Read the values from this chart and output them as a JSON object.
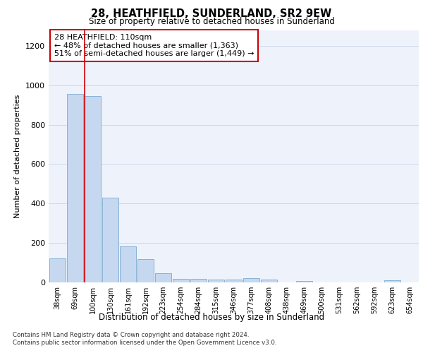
{
  "title": "28, HEATHFIELD, SUNDERLAND, SR2 9EW",
  "subtitle": "Size of property relative to detached houses in Sunderland",
  "xlabel": "Distribution of detached houses by size in Sunderland",
  "ylabel": "Number of detached properties",
  "categories": [
    "38sqm",
    "69sqm",
    "100sqm",
    "130sqm",
    "161sqm",
    "192sqm",
    "223sqm",
    "254sqm",
    "284sqm",
    "315sqm",
    "346sqm",
    "377sqm",
    "408sqm",
    "438sqm",
    "469sqm",
    "500sqm",
    "531sqm",
    "562sqm",
    "592sqm",
    "623sqm",
    "654sqm"
  ],
  "values": [
    120,
    955,
    945,
    430,
    183,
    117,
    47,
    18,
    18,
    13,
    13,
    20,
    13,
    0,
    8,
    0,
    0,
    0,
    0,
    10,
    0
  ],
  "bar_color": "#c5d8f0",
  "bar_edge_color": "#7aaad0",
  "background_color": "#eef2fb",
  "annotation_text": "28 HEATHFIELD: 110sqm\n← 48% of detached houses are smaller (1,363)\n51% of semi-detached houses are larger (1,449) →",
  "annotation_box_color": "#ffffff",
  "annotation_box_edge_color": "#cc0000",
  "redline_bar_index": 2,
  "ylim": [
    0,
    1280
  ],
  "yticks": [
    0,
    200,
    400,
    600,
    800,
    1000,
    1200
  ],
  "footer_line1": "Contains HM Land Registry data © Crown copyright and database right 2024.",
  "footer_line2": "Contains public sector information licensed under the Open Government Licence v3.0."
}
